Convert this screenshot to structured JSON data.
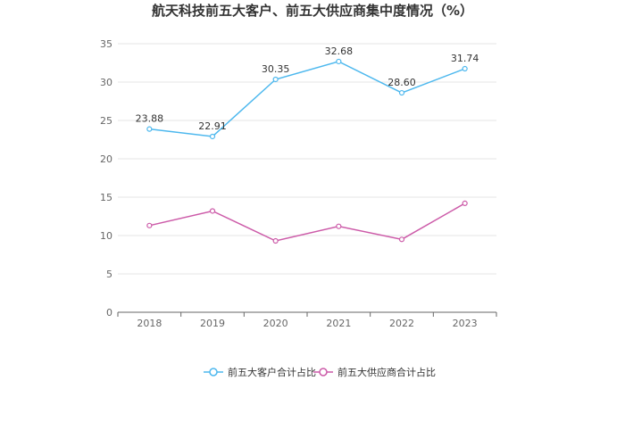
{
  "chart_data": {
    "type": "line",
    "title": "航天科技前五大客户、前五大供应商集中度情况（%）",
    "categories": [
      "2018",
      "2019",
      "2020",
      "2021",
      "2022",
      "2023"
    ],
    "ylim": [
      0,
      35
    ],
    "yticks": [
      0,
      5,
      10,
      15,
      20,
      25,
      30,
      35
    ],
    "grid": true,
    "legend_position": "bottom",
    "series": [
      {
        "name": "前五大客户合计占比",
        "color": "#4db8ee",
        "values": [
          23.88,
          22.91,
          30.35,
          32.68,
          28.6,
          31.74
        ],
        "labels": [
          "23.88",
          "22.91",
          "30.35",
          "32.68",
          "28.60",
          "31.74"
        ]
      },
      {
        "name": "前五大供应商合计占比",
        "color": "#cc5aa8",
        "values": [
          11.3,
          13.2,
          9.3,
          11.2,
          9.5,
          14.2
        ],
        "labels": []
      }
    ]
  }
}
